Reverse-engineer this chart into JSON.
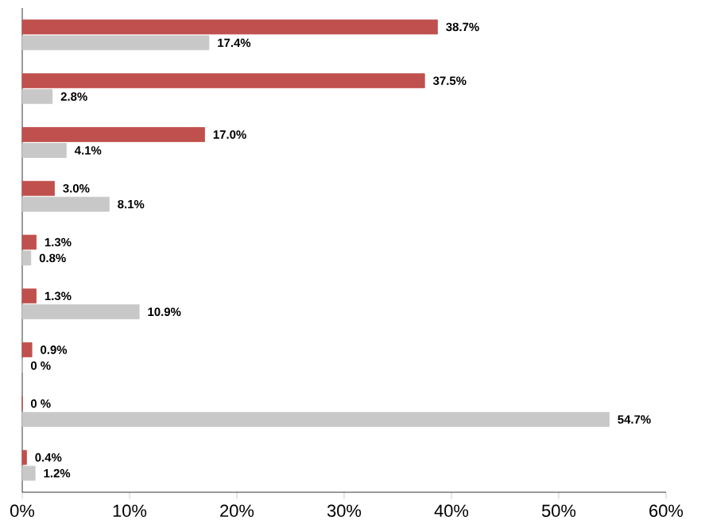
{
  "chart_data": {
    "type": "bar",
    "categories": [
      null,
      null,
      null,
      null,
      null,
      null,
      null,
      null,
      null
    ],
    "series": [
      {
        "color": "#c0504d",
        "values": [
          38.7,
          37.5,
          17.0,
          3.0,
          1.3,
          1.3,
          0.9,
          0,
          0.4
        ],
        "value_labels": [
          "38.7%",
          "37.5%",
          "17.0%",
          "3.0%",
          "1.3%",
          "1.3%",
          "0.9%",
          "0 %",
          "0.4%"
        ]
      },
      {
        "color": "#c8c8c8",
        "values": [
          17.4,
          2.8,
          4.1,
          8.1,
          0.8,
          10.9,
          0,
          54.7,
          1.2
        ],
        "value_labels": [
          "17.4%",
          "2.8%",
          "4.1%",
          "8.1%",
          "0.8%",
          "10.9%",
          "0 %",
          "54.7%",
          "1.2%"
        ]
      }
    ],
    "xlim": [
      0,
      60
    ],
    "xticks": [
      {
        "value": 0,
        "label": "0%"
      },
      {
        "value": 10,
        "label": "10%"
      },
      {
        "value": 20,
        "label": "20%"
      },
      {
        "value": 30,
        "label": "30%"
      },
      {
        "value": 40,
        "label": "40%"
      },
      {
        "value": 50,
        "label": "50%"
      },
      {
        "value": 60,
        "label": "60%"
      }
    ],
    "orientation": "horizontal"
  }
}
